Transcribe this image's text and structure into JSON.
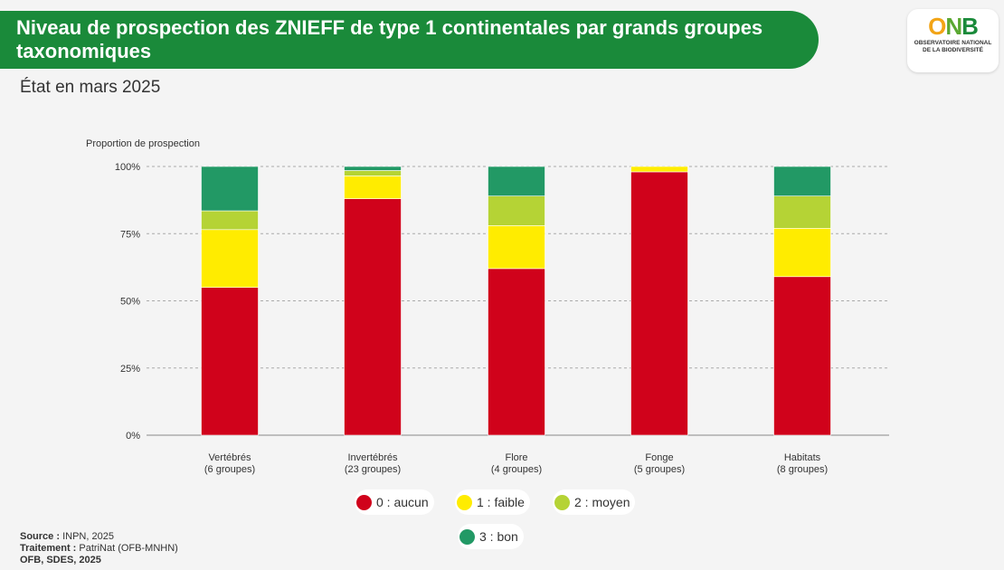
{
  "header": {
    "title_line1": "Niveau de prospection des ZNIEFF de type 1 continentales par grands groupes",
    "title_line2": "taxonomiques",
    "subtitle": "État en mars 2025"
  },
  "logo": {
    "mark_o": "O",
    "mark_n": "N",
    "mark_b": "B",
    "line1": "OBSERVATOIRE NATIONAL",
    "line2": "DE LA BIODIVERSITÉ"
  },
  "chart_data": {
    "type": "bar",
    "stacked": true,
    "ylabel": "Proportion de prospection",
    "ylim": [
      0,
      100
    ],
    "yticks": [
      "0%",
      "25%",
      "50%",
      "75%",
      "100%"
    ],
    "categories": [
      [
        "Vertébrés",
        "(6 groupes)"
      ],
      [
        "Invertébrés",
        "(23 groupes)"
      ],
      [
        "Flore",
        "(4 groupes)"
      ],
      [
        "Fonge",
        "(5 groupes)"
      ],
      [
        "Habitats",
        "(8 groupes)"
      ]
    ],
    "series": [
      {
        "name": "0 : aucun",
        "color": "#d0021b",
        "values": [
          55,
          88,
          62,
          98,
          59
        ]
      },
      {
        "name": "1 : faible",
        "color": "#ffec00",
        "values": [
          21.5,
          8.5,
          16,
          2,
          18
        ]
      },
      {
        "name": "2 : moyen",
        "color": "#b5d335",
        "values": [
          7,
          2,
          11,
          0,
          12
        ]
      },
      {
        "name": "3 : bon",
        "color": "#229965",
        "values": [
          16.5,
          1.5,
          11,
          0,
          11
        ]
      }
    ],
    "grid": true,
    "legend_position": "bottom"
  },
  "footer": {
    "source_label": "Source :",
    "source_value": "INPN, 2025",
    "traitement_label": "Traitement :",
    "traitement_value": "PatriNat (OFB-MNHN)",
    "credit": "OFB, SDES, 2025"
  }
}
